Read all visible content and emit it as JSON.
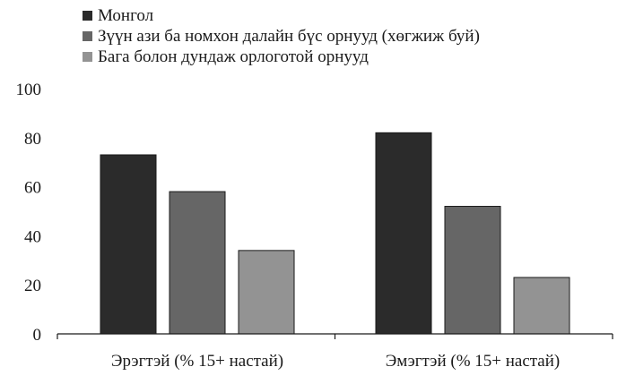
{
  "chart_data": {
    "type": "bar",
    "categories": [
      "Эрэгтэй (% 15+ настай)",
      "Эмэгтэй (% 15+ настай)"
    ],
    "series": [
      {
        "name": "Монгол",
        "values": [
          73,
          82
        ],
        "color": "#2b2b2b"
      },
      {
        "name": "Зүүн ази ба номхон далайн бүс орнууд (хөгжиж буй)",
        "values": [
          58,
          52
        ],
        "color": "#666666"
      },
      {
        "name": "Бага болон дундаж орлоготой орнууд",
        "values": [
          34,
          23
        ],
        "color": "#939393"
      }
    ],
    "ylim": [
      0,
      100
    ],
    "yticks": [
      "0",
      "20",
      "40",
      "60",
      "80",
      "100"
    ],
    "grid": false,
    "legend_position": "top-left"
  }
}
